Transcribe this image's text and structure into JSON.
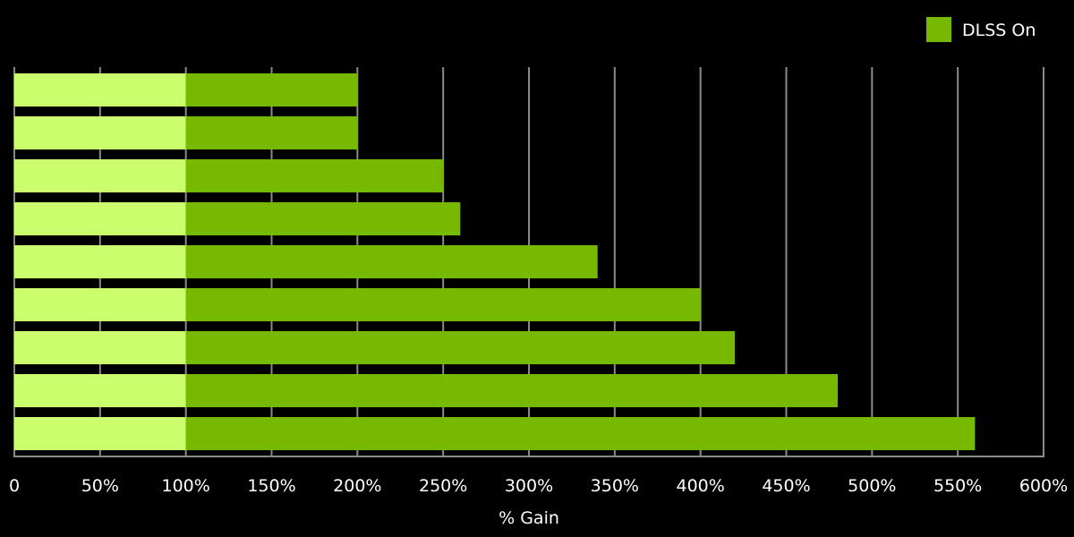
{
  "chart_data": {
    "type": "bar",
    "orientation": "horizontal",
    "stacked": true,
    "title": "",
    "xlabel": "% Gain",
    "ylabel": "",
    "xlim": [
      0,
      600
    ],
    "x_ticks": [
      "0",
      "50%",
      "100%",
      "150%",
      "200%",
      "250%",
      "300%",
      "350%",
      "400%",
      "450%",
      "500%",
      "550%",
      "600%"
    ],
    "x_tick_values": [
      0,
      50,
      100,
      150,
      200,
      250,
      300,
      350,
      400,
      450,
      500,
      550,
      600
    ],
    "grid": true,
    "legend_placement": "top-right",
    "series": [
      {
        "values": [
          100,
          100,
          100,
          100,
          100,
          100,
          100,
          100,
          100
        ],
        "color": "#ccff6e"
      },
      {
        "name": "DLSS On",
        "values": [
          100,
          100,
          150,
          160,
          240,
          300,
          320,
          380,
          460
        ],
        "color": "#76b900"
      }
    ],
    "totals": [
      200,
      200,
      250,
      260,
      340,
      400,
      420,
      480,
      560
    ]
  },
  "colors": {
    "background": "#000000",
    "grid": "#8a8a8a",
    "text": "#ffffff"
  }
}
